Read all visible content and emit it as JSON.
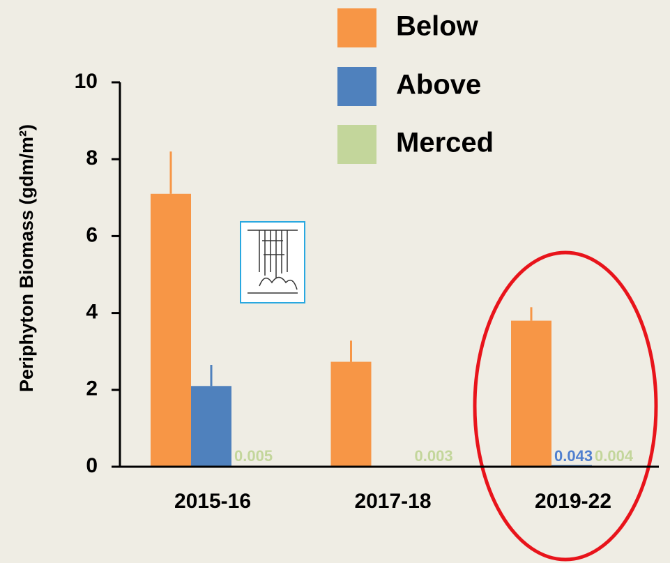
{
  "chart_data": {
    "type": "bar",
    "ylabel": "Periphyton Biomass (gdm/m²)",
    "categories": [
      "2015-16",
      "2017-18",
      "2019-22"
    ],
    "series": [
      {
        "name": "Below",
        "color": "#f79646",
        "values": [
          7.1,
          2.73,
          3.8
        ],
        "errors": [
          1.1,
          0.55,
          0.35
        ]
      },
      {
        "name": "Above",
        "color": "#4f81bd",
        "values": [
          2.1,
          0.02,
          0.043
        ],
        "errors": [
          0.55,
          null,
          null
        ],
        "value_labels": [
          null,
          null,
          "0.043"
        ],
        "label_color": "#4f7fcf"
      },
      {
        "name": "Merced",
        "color": "#c3d69b",
        "values": [
          0.005,
          0.003,
          0.004
        ],
        "value_labels": [
          "0.005",
          "0.003",
          "0.004"
        ],
        "label_color": "#c3d69b"
      }
    ],
    "ylim": [
      0,
      10
    ],
    "yticks": [
      0,
      2,
      4,
      6,
      8,
      10
    ]
  }
}
